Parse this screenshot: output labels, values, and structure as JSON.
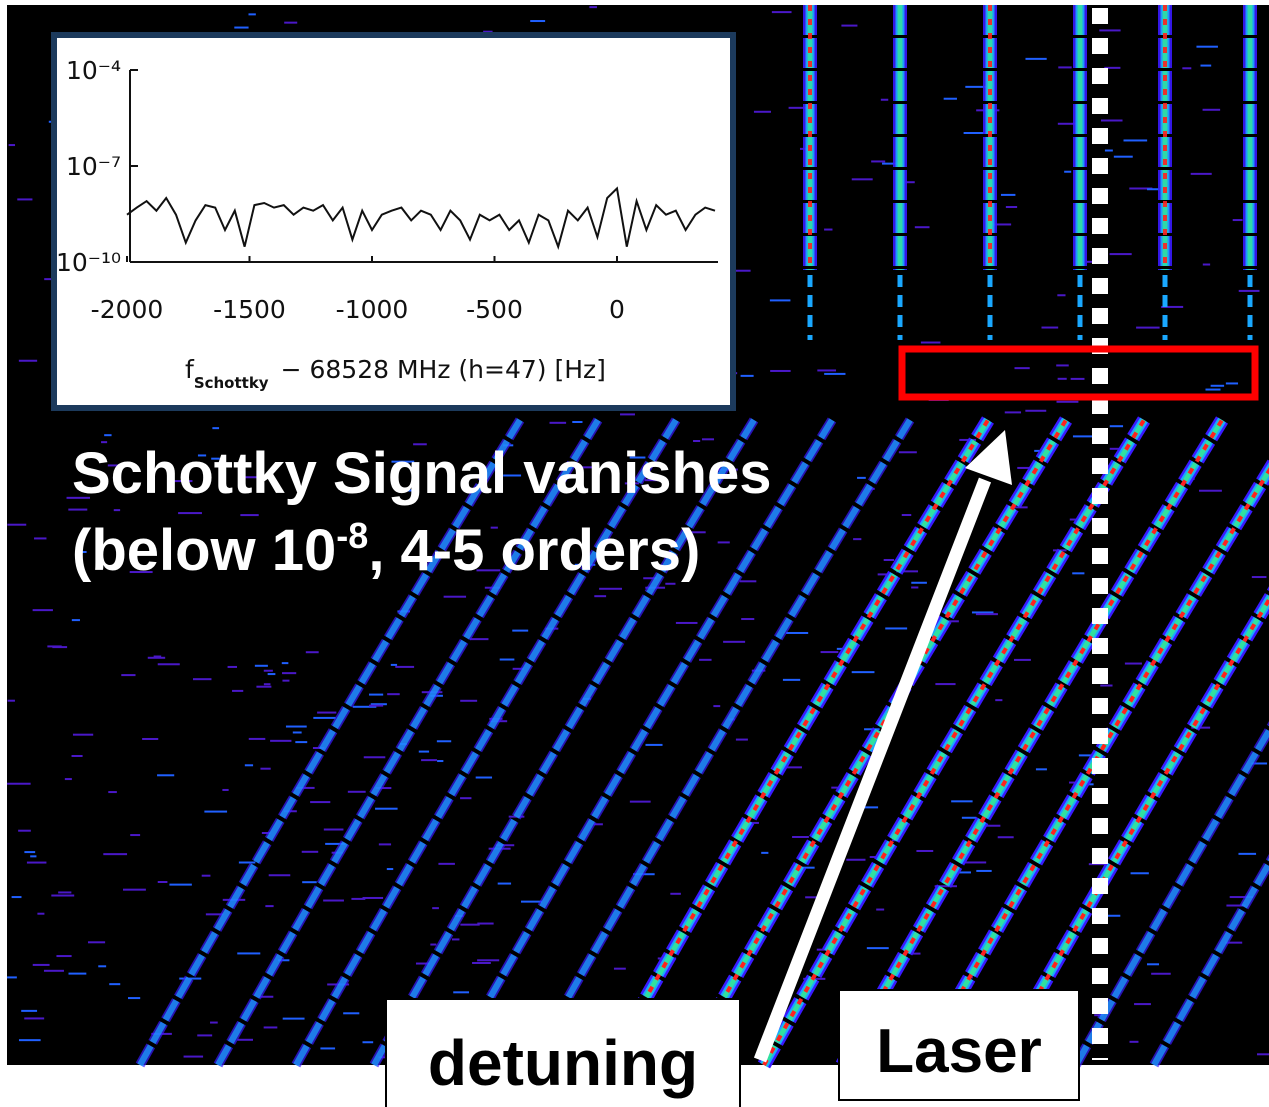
{
  "chart_data": {
    "type": "line",
    "x": [
      -2000,
      -1960,
      -1920,
      -1880,
      -1840,
      -1800,
      -1760,
      -1720,
      -1680,
      -1640,
      -1600,
      -1560,
      -1520,
      -1480,
      -1440,
      -1400,
      -1360,
      -1320,
      -1280,
      -1240,
      -1200,
      -1160,
      -1120,
      -1080,
      -1040,
      -1000,
      -960,
      -920,
      -880,
      -840,
      -800,
      -760,
      -720,
      -680,
      -640,
      -600,
      -560,
      -520,
      -480,
      -440,
      -400,
      -360,
      -320,
      -280,
      -240,
      -200,
      -160,
      -120,
      -80,
      -40,
      0,
      40,
      80,
      120,
      160,
      200,
      240,
      280,
      320,
      360,
      400
    ],
    "values": [
      3e-09,
      5e-09,
      8e-09,
      4e-09,
      1e-08,
      3e-09,
      4e-10,
      2e-09,
      6e-09,
      5e-09,
      1e-09,
      4e-09,
      3e-10,
      6e-09,
      7e-09,
      5e-09,
      6e-09,
      3e-09,
      5e-09,
      4e-09,
      6e-09,
      2e-09,
      5e-09,
      5e-10,
      4e-09,
      1e-09,
      3e-09,
      4e-09,
      5e-09,
      2e-09,
      4e-09,
      3e-09,
      1e-09,
      4e-09,
      2e-09,
      5e-10,
      3e-09,
      2e-09,
      3e-09,
      1e-09,
      2e-09,
      4e-10,
      3e-09,
      2e-09,
      3e-10,
      4e-09,
      2e-09,
      5e-09,
      6e-10,
      1e-08,
      2e-08,
      3e-10,
      8e-09,
      1e-09,
      6e-09,
      3e-09,
      4e-09,
      1e-09,
      3e-09,
      5e-09,
      4e-09
    ],
    "color": "#111111",
    "xlim": [
      -2000,
      400
    ],
    "xticks": [
      -2000,
      -1500,
      -1000,
      -500,
      0
    ],
    "ylim": [
      1e-10,
      0.0001
    ],
    "yticks": [
      {
        "value": 1e-10,
        "label": "10⁻¹⁰"
      },
      {
        "value": 1e-07,
        "label": "10⁻⁷"
      },
      {
        "value": 0.0001,
        "label": "10⁻⁴"
      }
    ],
    "log_y": true,
    "xlabel": [
      "f",
      "Schottky",
      "− 68528 MHz (h=47) [Hz]"
    ],
    "annotations": [
      "Schottky Signal vanishes",
      "(below 10",
      "-8",
      ", 4-5 orders)",
      "detuning",
      "Laser"
    ]
  }
}
